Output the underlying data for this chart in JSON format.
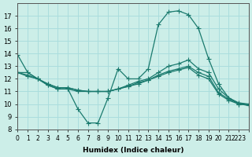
{
  "xlabel": "Humidex (Indice chaleur)",
  "bg_color": "#cceee8",
  "grid_color": "#aadddd",
  "line_color": "#1a7a6e",
  "x_data": [
    0,
    1,
    2,
    3,
    4,
    5,
    6,
    7,
    8,
    9,
    10,
    11,
    12,
    13,
    14,
    15,
    16,
    17,
    18,
    19,
    20,
    21,
    22,
    23
  ],
  "series": [
    [
      13.9,
      12.5,
      12.0,
      11.5,
      11.2,
      11.2,
      9.6,
      8.5,
      8.5,
      10.5,
      12.8,
      12.0,
      12.0,
      12.8,
      16.3,
      17.3,
      17.4,
      17.1,
      16.0,
      13.6,
      11.6,
      10.5,
      10.0,
      9.9
    ],
    [
      12.5,
      12.5,
      12.0,
      11.5,
      11.2,
      11.2,
      11.0,
      11.0,
      11.0,
      11.0,
      11.2,
      11.5,
      11.8,
      12.0,
      12.5,
      13.0,
      13.2,
      13.5,
      12.8,
      12.5,
      11.2,
      10.5,
      10.1,
      10.0
    ],
    [
      12.5,
      12.2,
      12.0,
      11.6,
      11.3,
      11.3,
      11.1,
      11.0,
      11.0,
      11.0,
      11.2,
      11.4,
      11.6,
      11.9,
      12.2,
      12.5,
      12.7,
      12.9,
      12.3,
      12.0,
      10.8,
      10.3,
      10.0,
      9.9
    ],
    [
      12.5,
      12.3,
      12.0,
      11.6,
      11.3,
      11.3,
      11.1,
      11.0,
      11.0,
      11.0,
      11.2,
      11.4,
      11.7,
      11.9,
      12.3,
      12.6,
      12.8,
      13.0,
      12.5,
      12.2,
      10.9,
      10.4,
      10.05,
      9.95
    ]
  ],
  "ylim": [
    8,
    18
  ],
  "xlim": [
    0,
    23
  ],
  "yticks": [
    8,
    9,
    10,
    11,
    12,
    13,
    14,
    15,
    16,
    17
  ],
  "xticks": [
    0,
    1,
    2,
    3,
    4,
    5,
    6,
    7,
    8,
    9,
    10,
    11,
    12,
    13,
    14,
    15,
    16,
    17,
    18,
    19,
    20,
    21,
    22,
    23
  ],
  "xtick_labels": [
    "0",
    "1",
    "2",
    "3",
    "4",
    "5",
    "6",
    "7",
    "8",
    "9",
    "10",
    "11",
    "12",
    "13",
    "14",
    "15",
    "16",
    "17",
    "18",
    "19",
    "20",
    "21",
    "2223",
    ""
  ]
}
